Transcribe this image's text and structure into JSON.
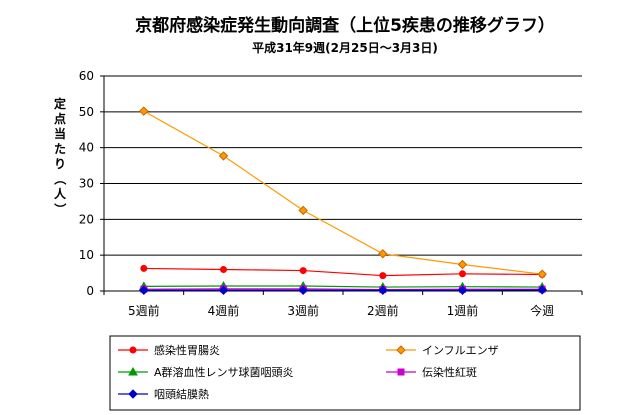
{
  "chart_data": {
    "type": "line",
    "title": "京都府感染症発生動向調査（上位5疾患の推移グラフ）",
    "subtitle": "平成31年9週(2月25日～3月3日)",
    "xlabel": "",
    "ylabel": "定点当たり（人）",
    "categories": [
      "5週前",
      "4週前",
      "3週前",
      "2週前",
      "1週前",
      "今週"
    ],
    "ylim": [
      0,
      60
    ],
    "yticks": [
      0,
      10,
      20,
      30,
      40,
      50,
      60
    ],
    "grid": true,
    "legend_position": "bottom",
    "series": [
      {
        "name": "感染性胃腸炎",
        "color": "#ff0000",
        "marker": "circle",
        "values": [
          6.3,
          6.0,
          5.7,
          4.3,
          4.8,
          4.6
        ]
      },
      {
        "name": "インフルエンザ",
        "color": "#ff9900",
        "marker": "diamond",
        "values": [
          50.2,
          37.7,
          22.5,
          10.4,
          7.4,
          4.7
        ]
      },
      {
        "name": "A群溶血性レンサ球菌咽頭炎",
        "color": "#009900",
        "marker": "triangle",
        "values": [
          1.3,
          1.4,
          1.4,
          1.1,
          1.2,
          1.1
        ]
      },
      {
        "name": "伝染性紅斑",
        "color": "#cc00cc",
        "marker": "square",
        "values": [
          0.5,
          0.6,
          0.6,
          0.4,
          0.5,
          0.5
        ]
      },
      {
        "name": "咽頭結膜熱",
        "color": "#0000cc",
        "marker": "diamond",
        "values": [
          0.2,
          0.2,
          0.2,
          0.2,
          0.2,
          0.3
        ]
      }
    ]
  }
}
